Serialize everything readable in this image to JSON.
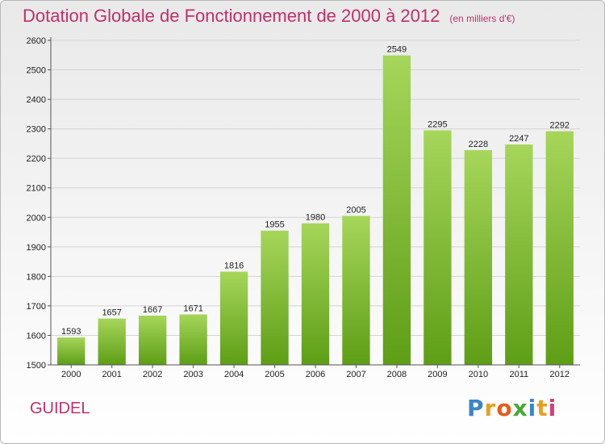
{
  "title": "Dotation Globale de Fonctionnement de 2000 à 2012",
  "subtitle": "(en milliers d'€)",
  "commune": "GUIDEL",
  "logo": {
    "letters": [
      "P",
      "r",
      "o",
      "x",
      "i",
      "t",
      "i"
    ],
    "colors": [
      "#3a86c8",
      "#e8a020",
      "#e65c1a",
      "#48a838",
      "#3a86c8",
      "#e8a020",
      "#d63c7a"
    ]
  },
  "colors": {
    "title": "#c0306a",
    "bar_top": "#a6d65a",
    "bar_bottom": "#5e9e16"
  },
  "chart_data": {
    "type": "bar",
    "title": "Dotation Globale de Fonctionnement de 2000 à 2012",
    "xlabel": "",
    "ylabel": "",
    "categories": [
      "2000",
      "2001",
      "2002",
      "2003",
      "2004",
      "2005",
      "2006",
      "2007",
      "2008",
      "2009",
      "2010",
      "2011",
      "2012"
    ],
    "values": [
      1593,
      1657,
      1667,
      1671,
      1816,
      1955,
      1980,
      2005,
      2549,
      2295,
      2228,
      2247,
      2292
    ],
    "ylim": [
      1500,
      2600
    ],
    "yticks": [
      1500,
      1600,
      1700,
      1800,
      1900,
      2000,
      2100,
      2200,
      2300,
      2400,
      2500,
      2600
    ],
    "grid": true,
    "legend": "none"
  }
}
